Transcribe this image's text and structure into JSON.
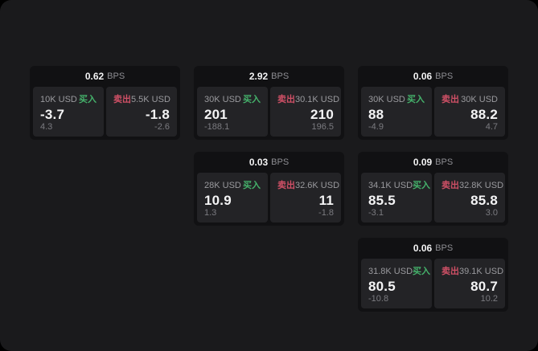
{
  "labels": {
    "bps_suffix": "BPS",
    "buy": "买入",
    "sell": "卖出"
  },
  "colors": {
    "buy": "#45b26b",
    "sell": "#cf5066",
    "page_background": "#1a1a1c",
    "card_background": "#111113",
    "panel_background": "#232326"
  },
  "cards": [
    {
      "bps": "0.62",
      "buy": {
        "amount": "10K USD",
        "price": "-3.7",
        "delta": "4.3"
      },
      "sell": {
        "amount": "5.5K USD",
        "price": "-1.8",
        "delta": "-2.6"
      }
    },
    {
      "bps": "2.92",
      "buy": {
        "amount": "30K USD",
        "price": "201",
        "delta": "-188.1"
      },
      "sell": {
        "amount": "30.1K USD",
        "price": "210",
        "delta": "196.5"
      }
    },
    {
      "bps": "0.06",
      "buy": {
        "amount": "30K USD",
        "price": "88",
        "delta": "-4.9"
      },
      "sell": {
        "amount": "30K USD",
        "price": "88.2",
        "delta": "4.7"
      }
    },
    {
      "bps": "0.03",
      "buy": {
        "amount": "28K USD",
        "price": "10.9",
        "delta": "1.3"
      },
      "sell": {
        "amount": "32.6K USD",
        "price": "11",
        "delta": "-1.8"
      }
    },
    {
      "bps": "0.09",
      "buy": {
        "amount": "34.1K USD",
        "price": "85.5",
        "delta": "-3.1"
      },
      "sell": {
        "amount": "32.8K USD",
        "price": "85.8",
        "delta": "3.0"
      }
    },
    {
      "bps": "0.06",
      "buy": {
        "amount": "31.8K USD",
        "price": "80.5",
        "delta": "-10.8"
      },
      "sell": {
        "amount": "39.1K USD",
        "price": "80.7",
        "delta": "10.2"
      }
    }
  ]
}
